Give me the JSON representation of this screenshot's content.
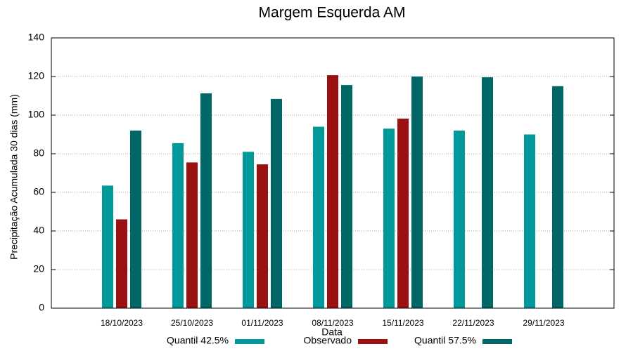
{
  "chart_data": {
    "type": "bar",
    "title": "Margem Esquerda AM",
    "x_label": "Data",
    "y_label": "Precipitação Acumulada 30 dias (mm)",
    "categories": [
      "18/10/2023",
      "25/10/2023",
      "01/11/2023",
      "08/11/2023",
      "15/11/2023",
      "22/11/2023",
      "29/11/2023"
    ],
    "series": [
      {
        "name": "Quantil 42.5%",
        "color": "#009999",
        "values": [
          63.5,
          85.5,
          81,
          94,
          93,
          92,
          90
        ]
      },
      {
        "name": "Observado",
        "color": "#991111",
        "values": [
          46,
          75.5,
          74.5,
          120.7,
          98.2,
          null,
          null
        ]
      },
      {
        "name": "Quantil 57.5%",
        "color": "#006666",
        "values": [
          92,
          111.3,
          108.4,
          115.6,
          120,
          119.6,
          115
        ]
      }
    ],
    "ylim": [
      0,
      140
    ],
    "yticks": [
      0,
      20,
      40,
      60,
      80,
      100,
      120,
      140
    ],
    "grid": true
  }
}
